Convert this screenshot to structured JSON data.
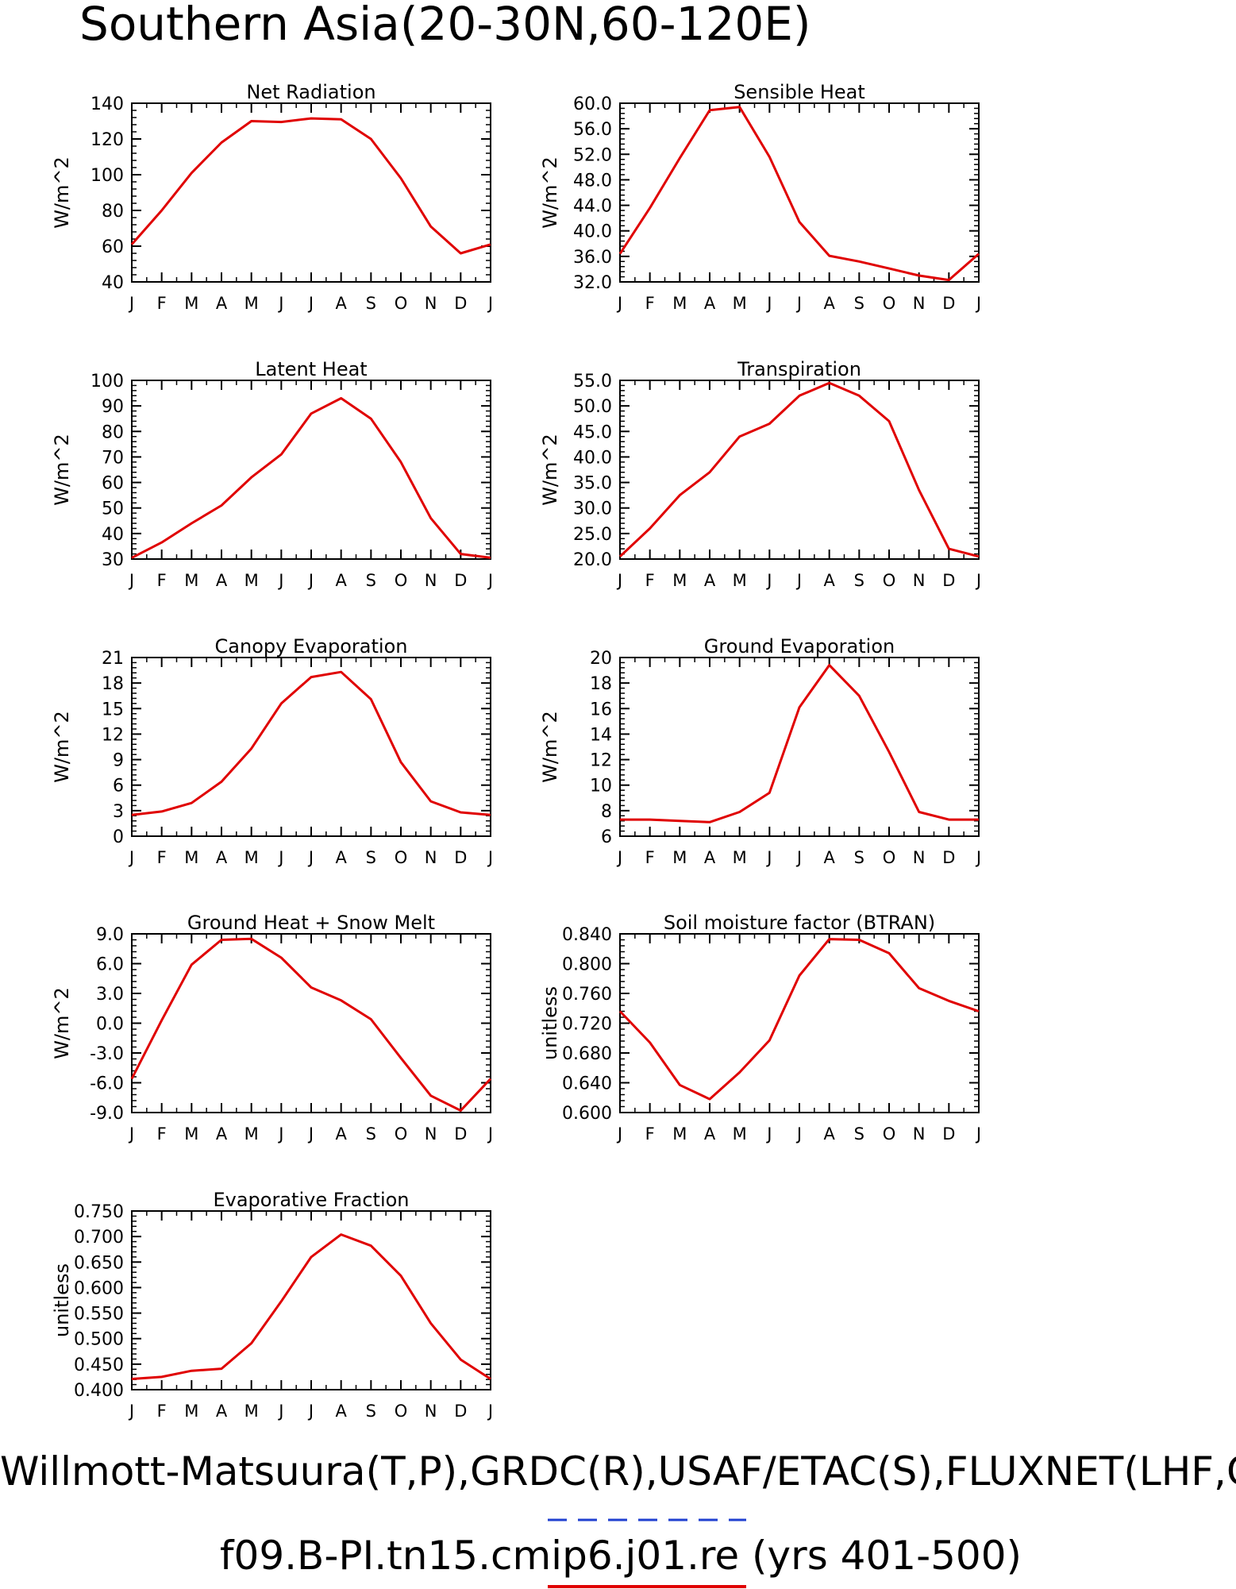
{
  "figure": {
    "title": "Southern Asia(20-30N,60-120E)",
    "footer_line1": "Willmott-Matsuura(T,P),GRDC(R),USAF/ETAC(S),FLUXNET(LHF,GPP)",
    "footer_line2": "f09.B-PI.tn15.cmip6.j01.re (yrs 401-500)",
    "legend_colors": {
      "obs": "#2040d0",
      "model": "#e00000"
    }
  },
  "chart_data": [
    {
      "type": "line",
      "title": "Net Radiation",
      "ylabel": "W/m^2",
      "x": [
        "J",
        "F",
        "M",
        "A",
        "M",
        "J",
        "J",
        "A",
        "S",
        "O",
        "N",
        "D",
        "J"
      ],
      "yticks": [
        "140",
        "120",
        "100",
        "80",
        "60",
        "40"
      ],
      "ylim": [
        40,
        140
      ],
      "series": [
        {
          "color": "#e00000",
          "values": [
            61,
            80,
            101,
            118,
            130,
            129.5,
            131.5,
            131,
            120,
            98,
            71,
            56,
            61
          ]
        }
      ]
    },
    {
      "type": "line",
      "title": "Sensible Heat",
      "ylabel": "W/m^2",
      "x": [
        "J",
        "F",
        "M",
        "A",
        "M",
        "J",
        "J",
        "A",
        "S",
        "O",
        "N",
        "D",
        "J"
      ],
      "yticks": [
        "60.0",
        "56.0",
        "52.0",
        "48.0",
        "44.0",
        "40.0",
        "36.0",
        "32.0"
      ],
      "ylim": [
        32,
        60
      ],
      "series": [
        {
          "color": "#e00000",
          "values": [
            36.4,
            43.6,
            51.4,
            58.9,
            59.4,
            51.6,
            41.4,
            36.1,
            35.2,
            34.1,
            33.0,
            32.3,
            36.4
          ]
        }
      ]
    },
    {
      "type": "line",
      "title": "Latent Heat",
      "ylabel": "W/m^2",
      "x": [
        "J",
        "F",
        "M",
        "A",
        "M",
        "J",
        "J",
        "A",
        "S",
        "O",
        "N",
        "D",
        "J"
      ],
      "yticks": [
        "100",
        "90",
        "80",
        "70",
        "60",
        "50",
        "40",
        "30"
      ],
      "ylim": [
        30,
        100
      ],
      "series": [
        {
          "color": "#e00000",
          "values": [
            30.5,
            36.5,
            44,
            51,
            62,
            71,
            87,
            93,
            85,
            68,
            46,
            32,
            30.5
          ]
        }
      ]
    },
    {
      "type": "line",
      "title": "Transpiration",
      "ylabel": "W/m^2",
      "x": [
        "J",
        "F",
        "M",
        "A",
        "M",
        "J",
        "J",
        "A",
        "S",
        "O",
        "N",
        "D",
        "J"
      ],
      "yticks": [
        "55.0",
        "50.0",
        "45.0",
        "40.0",
        "35.0",
        "30.0",
        "25.0",
        "20.0"
      ],
      "ylim": [
        20,
        55
      ],
      "series": [
        {
          "color": "#e00000",
          "values": [
            20.5,
            26,
            32.5,
            37,
            44,
            46.5,
            52,
            54.5,
            52,
            47,
            33.5,
            22,
            20.5
          ]
        }
      ]
    },
    {
      "type": "line",
      "title": "Canopy Evaporation",
      "ylabel": "W/m^2",
      "x": [
        "J",
        "F",
        "M",
        "A",
        "M",
        "J",
        "J",
        "A",
        "S",
        "O",
        "N",
        "D",
        "J"
      ],
      "yticks": [
        "21",
        "18",
        "15",
        "12",
        "9",
        "6",
        "3",
        "0"
      ],
      "ylim": [
        0,
        21
      ],
      "series": [
        {
          "color": "#e00000",
          "values": [
            2.5,
            2.9,
            3.9,
            6.4,
            10.3,
            15.6,
            18.7,
            19.3,
            16.1,
            8.7,
            4.1,
            2.8,
            2.5
          ]
        }
      ]
    },
    {
      "type": "line",
      "title": "Ground Evaporation",
      "ylabel": "W/m^2",
      "x": [
        "J",
        "F",
        "M",
        "A",
        "M",
        "J",
        "J",
        "A",
        "S",
        "O",
        "N",
        "D",
        "J"
      ],
      "yticks": [
        "20",
        "18",
        "16",
        "14",
        "12",
        "10",
        "8",
        "6"
      ],
      "ylim": [
        6,
        20
      ],
      "series": [
        {
          "color": "#e00000",
          "values": [
            7.3,
            7.3,
            7.2,
            7.1,
            7.9,
            9.4,
            16.1,
            19.4,
            17.0,
            12.6,
            7.9,
            7.3,
            7.3
          ]
        }
      ]
    },
    {
      "type": "line",
      "title": "Ground Heat + Snow Melt",
      "ylabel": "W/m^2",
      "x": [
        "J",
        "F",
        "M",
        "A",
        "M",
        "J",
        "J",
        "A",
        "S",
        "O",
        "N",
        "D",
        "J"
      ],
      "yticks": [
        "9.0",
        "6.0",
        "3.0",
        "0.0",
        "-3.0",
        "-6.0",
        "-9.0"
      ],
      "ylim": [
        -9,
        9
      ],
      "series": [
        {
          "color": "#e00000",
          "values": [
            -5.6,
            0.3,
            5.9,
            8.4,
            8.5,
            6.6,
            3.6,
            2.3,
            0.4,
            -3.5,
            -7.3,
            -8.8,
            -5.6
          ]
        }
      ]
    },
    {
      "type": "line",
      "title": "Soil moisture factor (BTRAN)",
      "ylabel": "unitless",
      "x": [
        "J",
        "F",
        "M",
        "A",
        "M",
        "J",
        "J",
        "A",
        "S",
        "O",
        "N",
        "D",
        "J"
      ],
      "yticks": [
        "0.840",
        "0.800",
        "0.760",
        "0.720",
        "0.680",
        "0.640",
        "0.600"
      ],
      "ylim": [
        0.6,
        0.84
      ],
      "series": [
        {
          "color": "#e00000",
          "values": [
            0.736,
            0.694,
            0.637,
            0.618,
            0.654,
            0.697,
            0.784,
            0.833,
            0.832,
            0.814,
            0.767,
            0.75,
            0.736
          ]
        }
      ]
    },
    {
      "type": "line",
      "title": "Evaporative Fraction",
      "ylabel": "unitless",
      "x": [
        "J",
        "F",
        "M",
        "A",
        "M",
        "J",
        "J",
        "A",
        "S",
        "O",
        "N",
        "D",
        "J"
      ],
      "yticks": [
        "0.750",
        "0.700",
        "0.650",
        "0.600",
        "0.550",
        "0.500",
        "0.450",
        "0.400"
      ],
      "ylim": [
        0.4,
        0.75
      ],
      "series": [
        {
          "color": "#e00000",
          "values": [
            0.421,
            0.425,
            0.437,
            0.441,
            0.491,
            0.573,
            0.66,
            0.704,
            0.682,
            0.623,
            0.53,
            0.459,
            0.421
          ]
        }
      ]
    }
  ]
}
